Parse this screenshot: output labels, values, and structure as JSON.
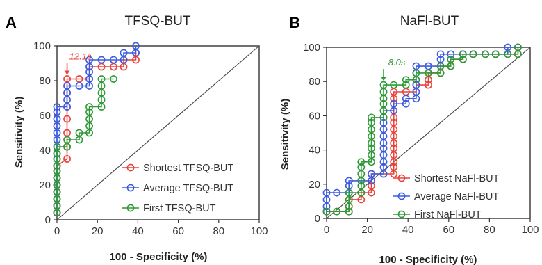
{
  "colors": {
    "shortest": "#e8423a",
    "average": "#3b5be0",
    "first": "#2e9a36",
    "axis": "#333333"
  },
  "panels": [
    {
      "letter": "A",
      "title": "TFSQ-BUT"
    },
    {
      "letter": "B",
      "title": "NaFl-BUT"
    }
  ],
  "chart_data": [
    {
      "type": "line",
      "title": "TFSQ-BUT",
      "xlabel": "100 - Specificity (%)",
      "ylabel": "Sensitivity (%)",
      "xlim": [
        0,
        100
      ],
      "ylim": [
        0,
        100
      ],
      "xticks": [
        "0",
        "20",
        "40",
        "60",
        "80",
        "100"
      ],
      "yticks": [
        "0",
        "20",
        "40",
        "60",
        "80",
        "100"
      ],
      "reference_line": "diagonal",
      "legend_position": "bottom-right",
      "annotation": {
        "text": "12.1s",
        "x": 5,
        "y": 81,
        "series": "shortest"
      },
      "series": [
        {
          "key": "shortest",
          "name": "Shortest TFSQ-BUT",
          "points": [
            [
              0,
              4
            ],
            [
              0,
              8
            ],
            [
              0,
              12
            ],
            [
              0,
              16
            ],
            [
              0,
              20
            ],
            [
              0,
              24
            ],
            [
              0,
              28
            ],
            [
              0,
              31
            ],
            [
              5,
              35
            ],
            [
              5,
              42
            ],
            [
              5,
              50
            ],
            [
              5,
              58
            ],
            [
              5,
              65
            ],
            [
              5,
              73
            ],
            [
              5,
              81
            ],
            [
              11,
              81
            ],
            [
              16,
              81
            ],
            [
              16,
              88
            ],
            [
              22,
              88
            ],
            [
              28,
              88
            ],
            [
              33,
              88
            ],
            [
              33,
              92
            ],
            [
              39,
              92
            ],
            [
              39,
              96
            ]
          ]
        },
        {
          "key": "average",
          "name": "Average TFSQ-BUT",
          "points": [
            [
              0,
              4
            ],
            [
              0,
              8
            ],
            [
              0,
              12
            ],
            [
              0,
              16
            ],
            [
              0,
              20
            ],
            [
              0,
              24
            ],
            [
              0,
              28
            ],
            [
              0,
              31
            ],
            [
              0,
              35
            ],
            [
              0,
              38
            ],
            [
              0,
              42
            ],
            [
              0,
              46
            ],
            [
              0,
              50
            ],
            [
              0,
              54
            ],
            [
              0,
              58
            ],
            [
              0,
              62
            ],
            [
              0,
              65
            ],
            [
              5,
              65
            ],
            [
              5,
              69
            ],
            [
              5,
              73
            ],
            [
              5,
              77
            ],
            [
              11,
              77
            ],
            [
              16,
              77
            ],
            [
              16,
              81
            ],
            [
              16,
              85
            ],
            [
              16,
              88
            ],
            [
              16,
              92
            ],
            [
              22,
              92
            ],
            [
              28,
              92
            ],
            [
              33,
              92
            ],
            [
              33,
              96
            ],
            [
              39,
              96
            ],
            [
              39,
              100
            ]
          ]
        },
        {
          "key": "first",
          "name": "First TFSQ-BUT",
          "points": [
            [
              0,
              4
            ],
            [
              0,
              8
            ],
            [
              0,
              12
            ],
            [
              0,
              16
            ],
            [
              0,
              20
            ],
            [
              0,
              24
            ],
            [
              0,
              28
            ],
            [
              0,
              31
            ],
            [
              0,
              35
            ],
            [
              0,
              38
            ],
            [
              0,
              42
            ],
            [
              5,
              42
            ],
            [
              5,
              46
            ],
            [
              11,
              46
            ],
            [
              11,
              50
            ],
            [
              16,
              50
            ],
            [
              16,
              54
            ],
            [
              16,
              58
            ],
            [
              16,
              62
            ],
            [
              16,
              65
            ],
            [
              22,
              65
            ],
            [
              22,
              69
            ],
            [
              22,
              73
            ],
            [
              22,
              77
            ],
            [
              22,
              81
            ],
            [
              28,
              81
            ]
          ]
        }
      ]
    },
    {
      "type": "line",
      "title": "NaFl-BUT",
      "xlabel": "100 - Specificity (%)",
      "ylabel": "Sensitivity (%)",
      "xlim": [
        0,
        100
      ],
      "ylim": [
        0,
        100
      ],
      "xticks": [
        "0",
        "20",
        "40",
        "60",
        "80",
        "100"
      ],
      "yticks": [
        "0",
        "20",
        "40",
        "60",
        "80",
        "100"
      ],
      "reference_line": "diagonal",
      "legend_position": "bottom-right",
      "annotation": {
        "text": "8.0s",
        "x": 28,
        "y": 78,
        "series": "first"
      },
      "series": [
        {
          "key": "shortest",
          "name": "Shortest NaFl-BUT",
          "points": [
            [
              0,
              4
            ],
            [
              5,
              4
            ],
            [
              11,
              4
            ],
            [
              11,
              7
            ],
            [
              11,
              11
            ],
            [
              17,
              11
            ],
            [
              17,
              15
            ],
            [
              22,
              15
            ],
            [
              22,
              19
            ],
            [
              22,
              22
            ],
            [
              22,
              26
            ],
            [
              28,
              26
            ],
            [
              33,
              26
            ],
            [
              33,
              30
            ],
            [
              33,
              33
            ],
            [
              33,
              37
            ],
            [
              33,
              41
            ],
            [
              33,
              44
            ],
            [
              33,
              48
            ],
            [
              33,
              52
            ],
            [
              33,
              56
            ],
            [
              33,
              59
            ],
            [
              33,
              63
            ],
            [
              33,
              67
            ],
            [
              33,
              70
            ],
            [
              33,
              74
            ],
            [
              39,
              74
            ],
            [
              44,
              74
            ],
            [
              44,
              78
            ],
            [
              50,
              78
            ],
            [
              50,
              81
            ],
            [
              50,
              85
            ],
            [
              56,
              85
            ],
            [
              56,
              89
            ],
            [
              61,
              89
            ],
            [
              61,
              93
            ],
            [
              67,
              93
            ],
            [
              67,
              96
            ],
            [
              72,
              96
            ],
            [
              78,
              96
            ],
            [
              83,
              96
            ],
            [
              89,
              96
            ],
            [
              94,
              96
            ],
            [
              94,
              100
            ]
          ]
        },
        {
          "key": "average",
          "name": "Average NaFl-BUT",
          "points": [
            [
              0,
              4
            ],
            [
              0,
              7
            ],
            [
              0,
              11
            ],
            [
              0,
              15
            ],
            [
              5,
              15
            ],
            [
              11,
              15
            ],
            [
              11,
              19
            ],
            [
              11,
              22
            ],
            [
              17,
              22
            ],
            [
              22,
              22
            ],
            [
              22,
              26
            ],
            [
              28,
              26
            ],
            [
              28,
              30
            ],
            [
              28,
              33
            ],
            [
              28,
              37
            ],
            [
              28,
              41
            ],
            [
              28,
              44
            ],
            [
              28,
              48
            ],
            [
              28,
              52
            ],
            [
              28,
              56
            ],
            [
              28,
              59
            ],
            [
              28,
              63
            ],
            [
              33,
              63
            ],
            [
              33,
              67
            ],
            [
              39,
              67
            ],
            [
              39,
              70
            ],
            [
              44,
              70
            ],
            [
              44,
              74
            ],
            [
              44,
              78
            ],
            [
              44,
              81
            ],
            [
              44,
              85
            ],
            [
              44,
              89
            ],
            [
              50,
              89
            ],
            [
              56,
              89
            ],
            [
              56,
              93
            ],
            [
              56,
              96
            ],
            [
              61,
              96
            ],
            [
              67,
              96
            ],
            [
              72,
              96
            ],
            [
              78,
              96
            ],
            [
              83,
              96
            ],
            [
              89,
              96
            ],
            [
              89,
              100
            ],
            [
              94,
              100
            ]
          ]
        },
        {
          "key": "first",
          "name": "First NaFl-BUT",
          "points": [
            [
              0,
              4
            ],
            [
              5,
              4
            ],
            [
              11,
              4
            ],
            [
              11,
              7
            ],
            [
              11,
              11
            ],
            [
              11,
              15
            ],
            [
              17,
              15
            ],
            [
              17,
              19
            ],
            [
              17,
              22
            ],
            [
              17,
              26
            ],
            [
              17,
              30
            ],
            [
              17,
              33
            ],
            [
              22,
              33
            ],
            [
              22,
              37
            ],
            [
              22,
              41
            ],
            [
              22,
              44
            ],
            [
              22,
              48
            ],
            [
              22,
              52
            ],
            [
              22,
              56
            ],
            [
              22,
              59
            ],
            [
              28,
              59
            ],
            [
              28,
              63
            ],
            [
              28,
              67
            ],
            [
              28,
              70
            ],
            [
              28,
              74
            ],
            [
              28,
              78
            ],
            [
              33,
              78
            ],
            [
              39,
              78
            ],
            [
              39,
              81
            ],
            [
              44,
              81
            ],
            [
              44,
              85
            ],
            [
              50,
              85
            ],
            [
              56,
              85
            ],
            [
              56,
              89
            ],
            [
              61,
              89
            ],
            [
              61,
              93
            ],
            [
              67,
              93
            ],
            [
              67,
              96
            ],
            [
              72,
              96
            ],
            [
              78,
              96
            ],
            [
              83,
              96
            ],
            [
              89,
              96
            ],
            [
              94,
              96
            ],
            [
              94,
              100
            ]
          ]
        }
      ]
    }
  ]
}
